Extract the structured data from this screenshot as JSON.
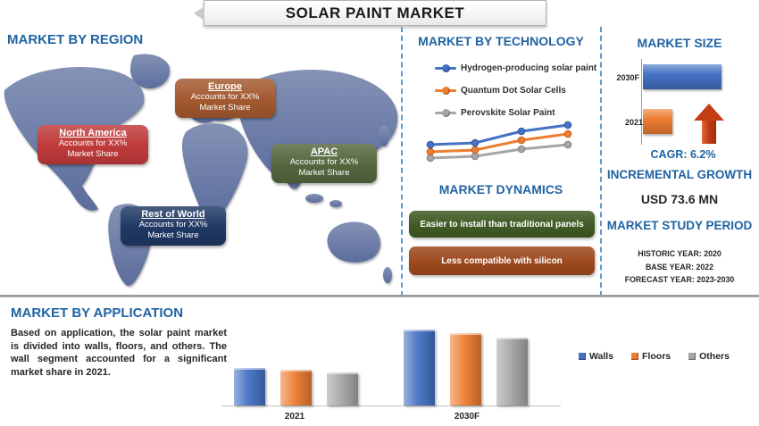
{
  "title": "SOLAR PAINT MARKET",
  "colors": {
    "heading_blue": "#2163a3",
    "map_fill": "#6b7ca6",
    "divider_dashed": "#5b9bd5",
    "arrow_red": "#c33d15"
  },
  "sections": {
    "region": {
      "heading": "MARKET BY REGION",
      "callouts": [
        {
          "title": "North America",
          "line1": "Accounts for XX%",
          "line2": "Market Share",
          "color": "#bf3a3a"
        },
        {
          "title": "Europe",
          "line1": "Accounts for XX%",
          "line2": "Market Share",
          "color": "#a2592f"
        },
        {
          "title": "APAC",
          "line1": "Accounts for XX%",
          "line2": "Market Share",
          "color": "#54663e"
        },
        {
          "title": "Rest of World",
          "line1": "Accounts for XX%",
          "line2": "Market Share",
          "color": "#1f3864"
        }
      ]
    },
    "technology": {
      "heading": "MARKET BY TECHNOLOGY"
    },
    "dynamics": {
      "heading": "MARKET DYNAMICS",
      "items": [
        {
          "text": "Easier to install than traditional panels",
          "color": "#405b25"
        },
        {
          "text": "Less compatible with silicon",
          "color": "#9d4a1e"
        }
      ]
    },
    "size": {
      "heading": "MARKET SIZE",
      "cagr_label": "CAGR: 6.2%",
      "incremental_heading": "INCREMENTAL GROWTH",
      "incremental_value": "USD 73.6 MN",
      "study_heading": "MARKET STUDY PERIOD",
      "study_lines": [
        "HISTORIC YEAR: 2020",
        "BASE YEAR: 2022",
        "FORECAST YEAR: 2023-2030"
      ]
    },
    "application": {
      "heading": "MARKET BY APPLICATION",
      "body": "Based on application, the solar paint market is divided into walls, floors, and others. The wall segment accounted for a significant market share in 2021."
    }
  },
  "chart_data": [
    {
      "type": "line",
      "title": "MARKET BY TECHNOLOGY",
      "x": [
        1,
        2,
        3,
        4
      ],
      "xlabel": "",
      "ylabel": "",
      "grid": false,
      "legend_position": "top",
      "note": "axes unlabeled; values are relative estimates from pixel positions",
      "series": [
        {
          "name": "Hydrogen-producing solar paint",
          "color": "#4472c4",
          "dark": "#2f5597",
          "values": [
            30,
            32,
            45,
            52
          ]
        },
        {
          "name": "Quantum Dot Solar Cells",
          "color": "#ed7d31",
          "dark": "#c55a11",
          "values": [
            22,
            24,
            35,
            42
          ]
        },
        {
          "name": "Perovskite Solar Paint",
          "color": "#a6a6a6",
          "dark": "#7f7f7f",
          "values": [
            15,
            17,
            25,
            30
          ]
        }
      ]
    },
    {
      "type": "bar",
      "orientation": "horizontal",
      "title": "MARKET SIZE",
      "categories": [
        "2030F",
        "2021"
      ],
      "values": [
        100,
        38
      ],
      "colors": [
        "#4472c4",
        "#ed7d31"
      ],
      "note": "relative bar lengths; axis unlabeled",
      "cagr": "6.2%",
      "incremental_growth": "USD 73.6 MN"
    },
    {
      "type": "bar",
      "title": "MARKET BY APPLICATION",
      "categories": [
        "2021",
        "2030F"
      ],
      "grid": false,
      "legend_position": "right",
      "note": "relative bar heights; y-axis not shown",
      "series": [
        {
          "name": "Walls",
          "color": "#4472c4",
          "values": [
            42,
            85
          ]
        },
        {
          "name": "Floors",
          "color": "#ed7d31",
          "values": [
            40,
            81
          ]
        },
        {
          "name": "Others",
          "color": "#a6a6a6",
          "values": [
            37,
            76
          ]
        }
      ]
    }
  ]
}
